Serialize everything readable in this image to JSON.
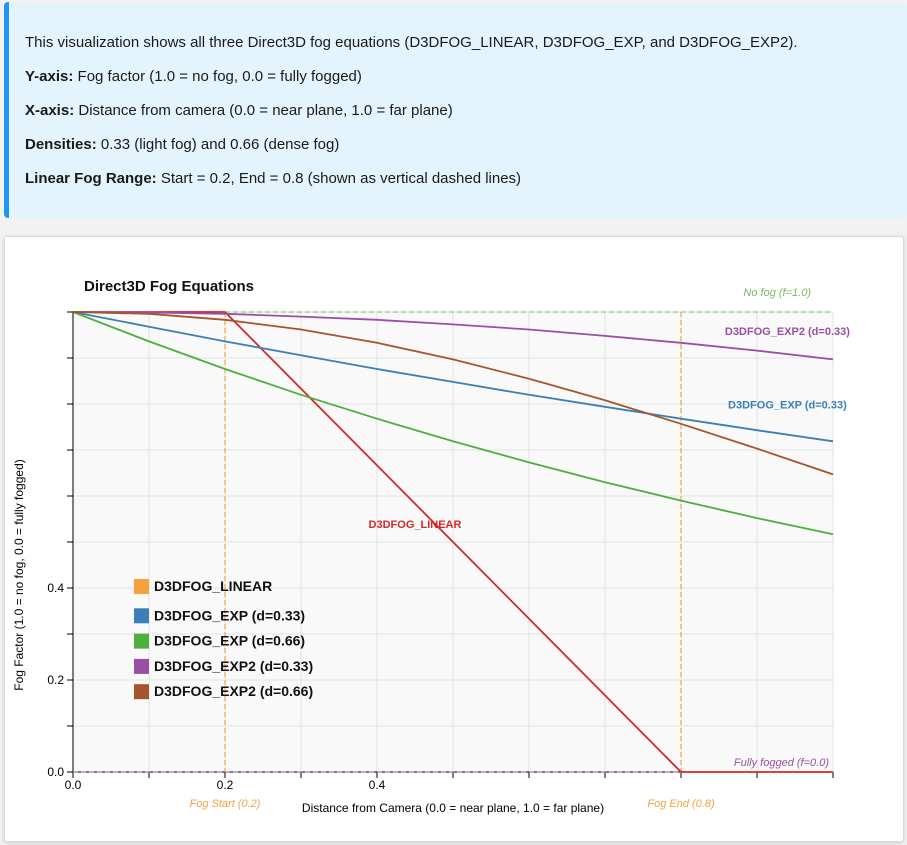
{
  "info": {
    "intro": "This visualization shows all three Direct3D fog equations (D3DFOG_LINEAR, D3DFOG_EXP, and D3DFOG_EXP2).",
    "yaxis_label": "Y-axis:",
    "yaxis_text": "Fog factor (1.0 = no fog, 0.0 = fully fogged)",
    "xaxis_label": "X-axis:",
    "xaxis_text": "Distance from camera (0.0 = near plane, 1.0 = far plane)",
    "densities_label": "Densities:",
    "densities_text": "0.33 (light fog) and 0.66 (dense fog)",
    "range_label": "Linear Fog Range:",
    "range_text": "Start = 0.2, End = 0.8 (shown as vertical dashed lines)"
  },
  "colors": {
    "linear": "#d62728",
    "exp_033": "#3a7fb8",
    "exp_066": "#4daf3e",
    "exp2_033": "#9b4ea6",
    "exp2_066": "#a6552a",
    "marker": "#f7a13e",
    "nofog": "#76b960"
  },
  "chart_data": {
    "type": "line",
    "title": "Direct3D Fog Equations",
    "xlabel": "Distance from Camera (0.0 = near plane, 1.0 = far plane)",
    "ylabel": "Fog Factor (1.0 = no fog, 0.0 = fully fogged)",
    "xlim": [
      0,
      1
    ],
    "ylim": [
      0,
      1
    ],
    "x_ticks": [
      0,
      0.1,
      0.2,
      0.3,
      0.4,
      0.5,
      0.6,
      0.7,
      0.8,
      0.9,
      1.0
    ],
    "x_tick_labels": [
      "0.0",
      "",
      "0.2",
      "",
      "0.4",
      "",
      "",
      "",
      "",
      "",
      ""
    ],
    "y_ticks": [
      0,
      0.1,
      0.2,
      0.3,
      0.4,
      0.5,
      0.6,
      0.7,
      0.8,
      0.9,
      1.0
    ],
    "y_tick_labels": [
      "0.0",
      "",
      "0.2",
      "",
      "0.4",
      "",
      "",
      "",
      "",
      "",
      ""
    ],
    "grid": true,
    "x": [
      0,
      0.1,
      0.2,
      0.3,
      0.4,
      0.5,
      0.6,
      0.7,
      0.8,
      0.9,
      1.0
    ],
    "series": [
      {
        "name": "D3DFOG_LINEAR",
        "key": "linear",
        "x": [
          0,
          0.2,
          0.8,
          1.0
        ],
        "values": [
          1,
          1,
          0,
          0
        ]
      },
      {
        "name": "D3DFOG_EXP (d=0.33)",
        "key": "exp_033",
        "values": [
          1,
          0.968,
          0.936,
          0.906,
          0.876,
          0.848,
          0.82,
          0.794,
          0.768,
          0.743,
          0.719
        ]
      },
      {
        "name": "D3DFOG_EXP (d=0.66)",
        "key": "exp_066",
        "values": [
          1,
          0.936,
          0.876,
          0.82,
          0.768,
          0.719,
          0.673,
          0.63,
          0.59,
          0.552,
          0.517
        ]
      },
      {
        "name": "D3DFOG_EXP2 (d=0.33)",
        "key": "exp2_033",
        "values": [
          1,
          0.999,
          0.996,
          0.99,
          0.983,
          0.973,
          0.962,
          0.948,
          0.933,
          0.916,
          0.897
        ]
      },
      {
        "name": "D3DFOG_EXP2 (d=0.66)",
        "key": "exp2_066",
        "values": [
          1,
          0.996,
          0.983,
          0.962,
          0.933,
          0.897,
          0.855,
          0.808,
          0.757,
          0.703,
          0.647
        ]
      }
    ],
    "legend": {
      "placement": "bottom-left",
      "items": [
        {
          "label": "D3DFOG_LINEAR",
          "key": "marker"
        },
        {
          "label": "D3DFOG_EXP (d=0.33)",
          "key": "exp_033"
        },
        {
          "label": "D3DFOG_EXP (d=0.66)",
          "key": "exp_066"
        },
        {
          "label": "D3DFOG_EXP2 (d=0.33)",
          "key": "exp2_033"
        },
        {
          "label": "D3DFOG_EXP2 (d=0.66)",
          "key": "exp2_066"
        }
      ]
    },
    "markers": [
      {
        "x": 0.2,
        "label": "Fog Start (0.2)"
      },
      {
        "x": 0.8,
        "label": "Fog End (0.8)"
      }
    ],
    "reference_lines": [
      {
        "y": 1.0,
        "label": "No fog (f=1.0)",
        "key": "nofog"
      },
      {
        "y": 0.0,
        "label": "Fully fogged (f=0.0)",
        "key": "exp2_033"
      }
    ],
    "annotations": [
      {
        "text": "D3DFOG_EXP2 (d=0.33)",
        "key": "exp2_033",
        "x": 0.94,
        "y": 0.95
      },
      {
        "text": "D3DFOG_EXP (d=0.33)",
        "key": "exp_033",
        "x": 0.94,
        "y": 0.79
      },
      {
        "text": "D3DFOG_LINEAR",
        "key": "linear",
        "x": 0.45,
        "y": 0.53
      }
    ]
  }
}
